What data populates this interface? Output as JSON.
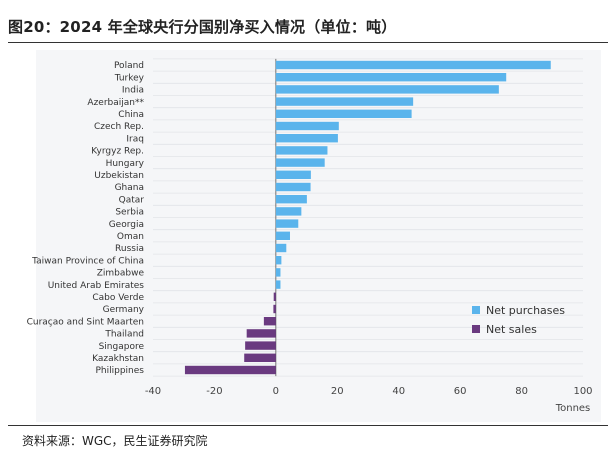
{
  "title": "图20：2024 年全球央行分国别净买入情况（单位：吨）",
  "source": "资料来源：WGC，民生证券研究院",
  "chart_data": {
    "type": "bar",
    "orientation": "horizontal",
    "categories": [
      "Poland",
      "Turkey",
      "India",
      "Azerbaijan**",
      "China",
      "Czech Rep.",
      "Iraq",
      "Kyrgyz Rep.",
      "Hungary",
      "Uzbekistan",
      "Ghana",
      "Qatar",
      "Serbia",
      "Georgia",
      "Oman",
      "Russia",
      "Taiwan Province of China",
      "Zimbabwe",
      "United Arab Emirates",
      "Cabo Verde",
      "Germany",
      "Curaçao and Sint Maarten",
      "Thailand",
      "Singapore",
      "Kazakhstan",
      "Philippines"
    ],
    "values": [
      89.5,
      75,
      72.6,
      44.7,
      44.2,
      20.5,
      20.2,
      16.8,
      15.9,
      11.4,
      11.3,
      10.1,
      8.3,
      7.3,
      4.6,
      3.4,
      1.8,
      1.5,
      1.5,
      -0.7,
      -0.8,
      -3.9,
      -9.5,
      -10,
      -10.3,
      -29.6
    ],
    "xlabel": "Tonnes",
    "xlim": [
      -40,
      100
    ],
    "xticks": [
      "-40",
      "-20",
      "0",
      "20",
      "40",
      "60",
      "80",
      "100"
    ],
    "grid": "horizontal",
    "legend": {
      "position": "bottom-right",
      "items": [
        {
          "name": "Net purchases",
          "color": "#5ab4ec"
        },
        {
          "name": "Net sales",
          "color": "#6a3a80"
        }
      ]
    }
  }
}
